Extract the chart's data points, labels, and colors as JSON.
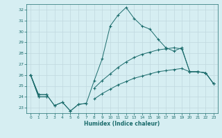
{
  "xlabel": "Humidex (Indice chaleur)",
  "x": [
    0,
    1,
    2,
    3,
    4,
    5,
    6,
    7,
    8,
    9,
    10,
    11,
    12,
    13,
    14,
    15,
    16,
    17,
    18,
    19,
    20,
    21,
    22,
    23
  ],
  "line1_y": [
    26,
    24.2,
    24.2,
    23.2,
    23.5,
    22.7,
    23.3,
    23.4,
    25.5,
    27.5,
    30.5,
    31.5,
    32.2,
    31.2,
    30.5,
    30.2,
    29.3,
    28.5,
    28.2,
    28.5,
    26.3,
    26.3,
    26.2,
    25.2
  ],
  "line2_y": [
    26,
    24.2,
    24.2,
    23.2,
    23.5,
    22.7,
    23.3,
    23.4,
    null,
    null,
    null,
    null,
    null,
    null,
    null,
    null,
    null,
    null,
    null,
    null,
    null,
    null,
    null,
    null
  ],
  "line3_y": [
    26,
    24,
    24,
    null,
    null,
    null,
    null,
    null,
    24.8,
    25.5,
    26.1,
    26.7,
    27.2,
    27.6,
    27.9,
    28.1,
    28.3,
    28.4,
    28.5,
    28.4,
    26.3,
    26.3,
    26.2,
    25.2
  ],
  "line4_y": [
    26,
    24,
    24,
    null,
    null,
    null,
    null,
    null,
    23.8,
    24.3,
    24.7,
    25.1,
    25.4,
    25.7,
    25.9,
    26.1,
    26.3,
    26.4,
    26.5,
    26.6,
    26.3,
    26.3,
    26.2,
    25.2
  ],
  "bg_color": "#d6eef2",
  "grid_color": "#c0d8de",
  "line_color": "#1a6b6b",
  "ylim": [
    22.5,
    32.5
  ],
  "yticks": [
    23,
    24,
    25,
    26,
    27,
    28,
    29,
    30,
    31,
    32
  ],
  "xlim": [
    -0.5,
    23.5
  ],
  "xticks": [
    0,
    1,
    2,
    3,
    4,
    5,
    6,
    7,
    8,
    9,
    10,
    11,
    12,
    13,
    14,
    15,
    16,
    17,
    18,
    19,
    20,
    21,
    22,
    23
  ]
}
